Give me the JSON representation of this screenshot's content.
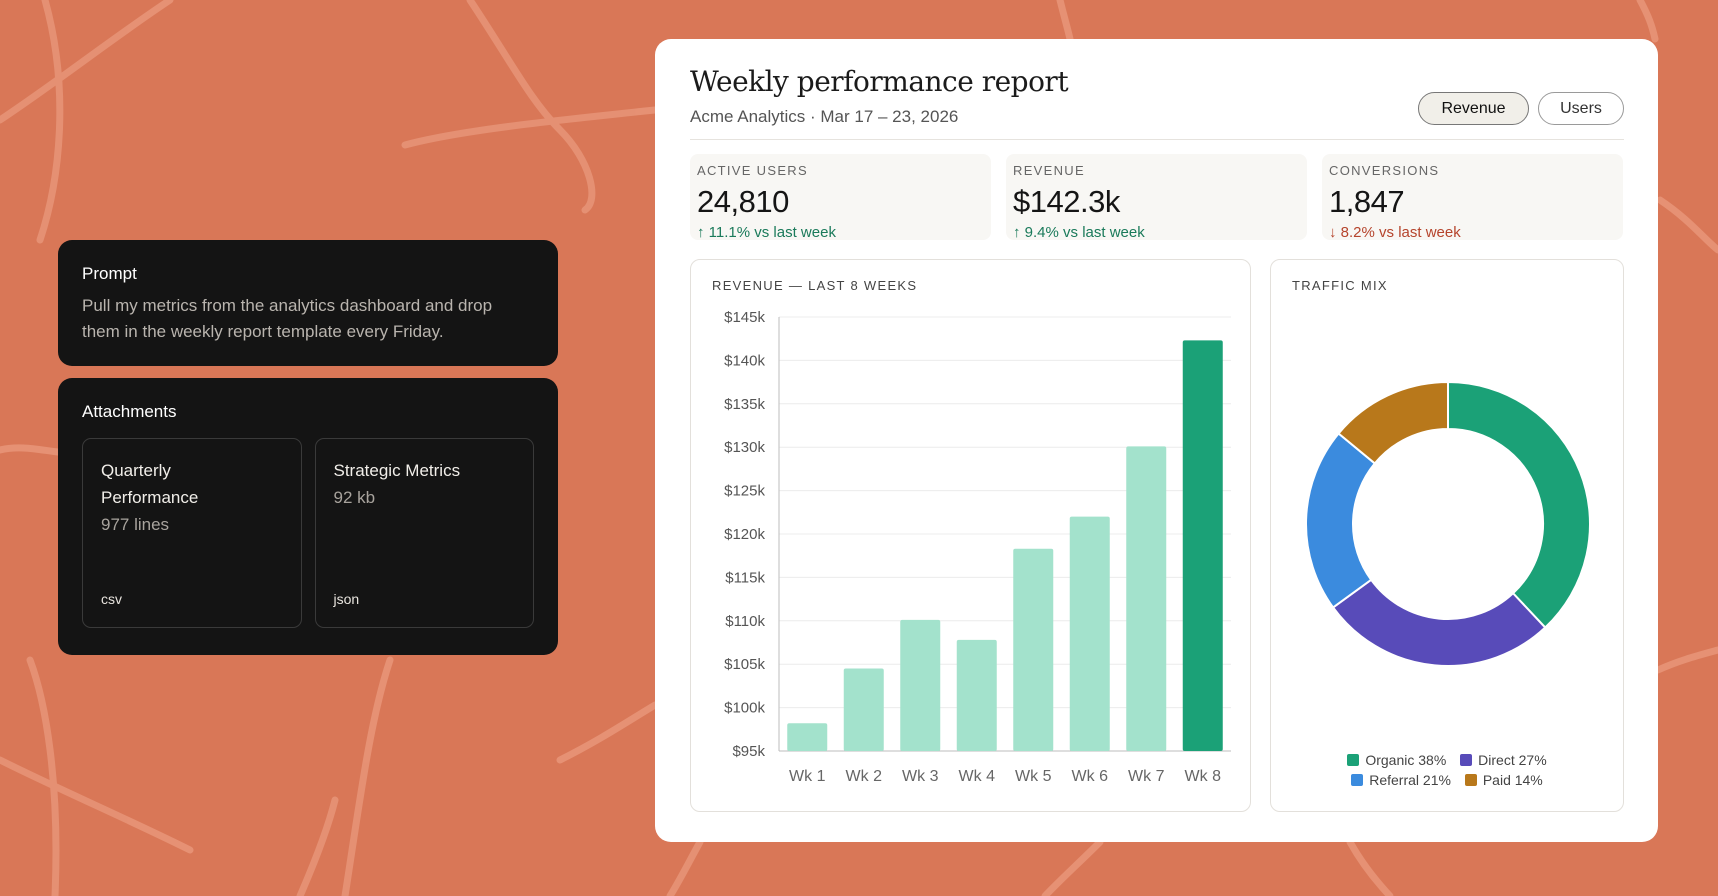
{
  "prompt": {
    "title": "Prompt",
    "text": "Pull my metrics from the analytics dashboard and drop them in the weekly report template every Friday."
  },
  "attachments": {
    "title": "Attachments",
    "items": [
      {
        "name": "Quarterly Performance",
        "meta": "977 lines",
        "type": "csv"
      },
      {
        "name": "Strategic Metrics",
        "meta": "92 kb",
        "type": "json"
      }
    ]
  },
  "report": {
    "title": "Weekly performance report",
    "subtitle": "Acme Analytics · Mar 17 – 23, 2026",
    "toggles": {
      "revenue": "Revenue",
      "users": "Users",
      "selected": "Revenue"
    },
    "kpis": [
      {
        "label": "ACTIVE USERS",
        "value": "24,810",
        "delta": "↑ 11.1% vs last week",
        "direction": "up"
      },
      {
        "label": "REVENUE",
        "value": "$142.3k",
        "delta": "↑ 9.4% vs last week",
        "direction": "up"
      },
      {
        "label": "CONVERSIONS",
        "value": "1,847",
        "delta": "↓ 8.2% vs last week",
        "direction": "down"
      }
    ],
    "bar_panel_title": "REVENUE — LAST 8 WEEKS",
    "pie_panel_title": "TRAFFIC MIX"
  },
  "colors": {
    "background": "#D97757",
    "bar_light": "#A3E2CC",
    "bar_highlight": "#1BA177",
    "organic": "#1BA177",
    "direct": "#584BB9",
    "referral": "#3B8BDE",
    "paid": "#B8781B"
  },
  "chart_data": [
    {
      "type": "bar",
      "title": "REVENUE — LAST 8 WEEKS",
      "categories": [
        "Wk 1",
        "Wk 2",
        "Wk 3",
        "Wk 4",
        "Wk 5",
        "Wk 6",
        "Wk 7",
        "Wk 8"
      ],
      "values": [
        98.2,
        104.5,
        110.1,
        107.8,
        118.3,
        122.0,
        130.1,
        142.3
      ],
      "highlight_index": 7,
      "ylim": [
        95,
        145
      ],
      "yticks": [
        95,
        100,
        105,
        110,
        115,
        120,
        125,
        130,
        135,
        140,
        145
      ],
      "ytick_labels": [
        "$95k",
        "$100k",
        "$105k",
        "$110k",
        "$115k",
        "$120k",
        "$125k",
        "$130k",
        "$135k",
        "$140k",
        "$145k"
      ],
      "xlabel": "",
      "ylabel": "",
      "grid": true
    },
    {
      "type": "pie",
      "title": "TRAFFIC MIX",
      "donut": true,
      "slices": [
        {
          "label": "Organic",
          "value": 38,
          "legend": "Organic 38%",
          "color": "#1BA177"
        },
        {
          "label": "Direct",
          "value": 27,
          "legend": "Direct 27%",
          "color": "#584BB9"
        },
        {
          "label": "Referral",
          "value": 21,
          "legend": "Referral 21%",
          "color": "#3B8BDE"
        },
        {
          "label": "Paid",
          "value": 14,
          "legend": "Paid 14%",
          "color": "#B8781B"
        }
      ],
      "legend_position": "bottom"
    }
  ]
}
